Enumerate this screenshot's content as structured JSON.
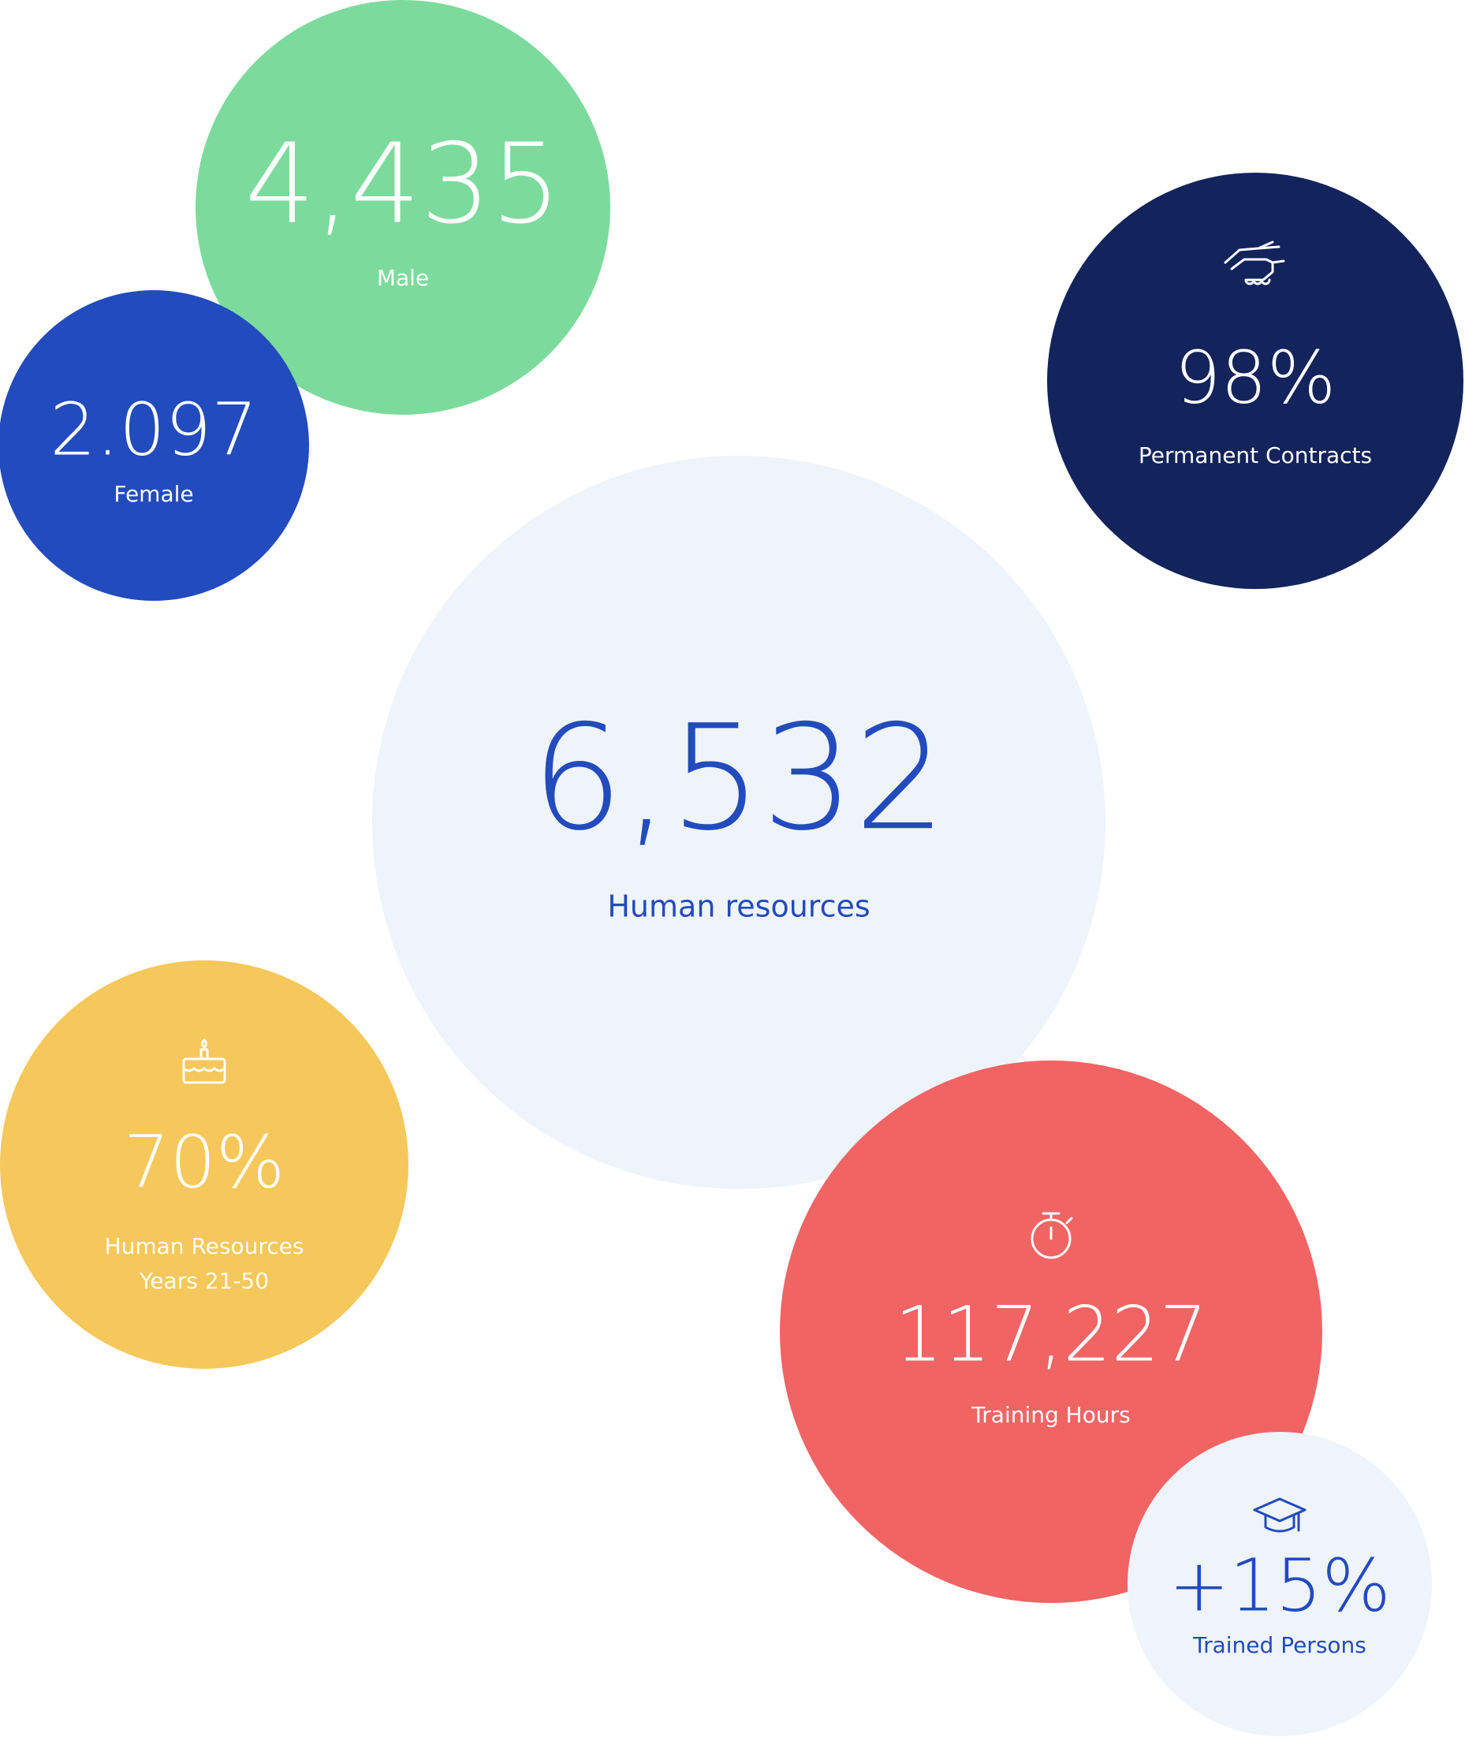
{
  "bubbles": [
    {
      "value": "4,435",
      "labels": [
        "Male"
      ],
      "color": "#7cdb9c",
      "text_color": "#ffffff"
    },
    {
      "value": "2.097",
      "labels": [
        "Female"
      ],
      "color": "#224bbd",
      "text_color": "#ffffff"
    },
    {
      "value": "98%",
      "labels": [
        "Permanent Contracts"
      ],
      "color": "#13245c",
      "text_color": "#ffffff"
    },
    {
      "value": "6,532",
      "labels": [
        "Human resources"
      ],
      "color": "#eff3fa",
      "text_color": "#224bbd"
    },
    {
      "value": "70%",
      "labels": [
        "Human Resources",
        "Years 21-50"
      ],
      "color": "#f6c75b",
      "text_color": "#ffffff"
    },
    {
      "value": "117,227",
      "labels": [
        "Training Hours"
      ],
      "color": "#f16464",
      "text_color": "#ffffff"
    },
    {
      "value": "+15%",
      "labels": [
        "Trained Persons"
      ],
      "color": "#eff3fa",
      "text_color": "#224bbd"
    }
  ]
}
